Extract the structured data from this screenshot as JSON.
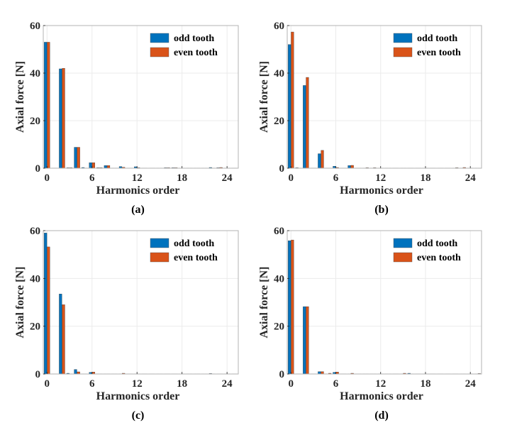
{
  "colors": {
    "odd": "#0072BD",
    "even": "#D95319",
    "grid": "#ebebeb",
    "frame": "#b3b3b3"
  },
  "chart_data": [
    {
      "type": "bar",
      "caption": "(a)",
      "xlabel": "Harmonics order",
      "ylabel": "Axial force [N]",
      "xlim": [
        -0.5,
        25.5
      ],
      "ylim": [
        0,
        60
      ],
      "xticks": [
        0,
        6,
        12,
        18,
        24
      ],
      "yticks": [
        0,
        20,
        40,
        60
      ],
      "grid": true,
      "legend": {
        "position": "top-right",
        "entries": [
          "odd tooth",
          "even tooth"
        ]
      },
      "x": [
        0,
        1,
        2,
        3,
        4,
        5,
        6,
        7,
        8,
        9,
        10,
        11,
        12,
        13,
        14,
        15,
        16,
        17,
        18,
        19,
        20,
        21,
        22,
        23,
        24,
        25
      ],
      "series": [
        {
          "name": "odd tooth",
          "values": [
            53.0,
            0.1,
            41.8,
            0.2,
            8.8,
            0.3,
            2.3,
            0.2,
            1.1,
            0.1,
            0.7,
            0.1,
            0.6,
            0.1,
            0.1,
            0.1,
            0.2,
            0.2,
            0.1,
            0.1,
            0.1,
            0.1,
            0.3,
            0.2,
            0.1,
            0.1
          ]
        },
        {
          "name": "even tooth",
          "values": [
            53.0,
            0.1,
            42.0,
            0.2,
            8.8,
            0.1,
            2.3,
            0.2,
            1.1,
            0.1,
            0.4,
            0.1,
            0.2,
            0.1,
            0.1,
            0.1,
            0.2,
            0.2,
            0.1,
            0.1,
            0.1,
            0.1,
            0.1,
            0.3,
            0.1,
            0.1
          ]
        }
      ]
    },
    {
      "type": "bar",
      "caption": "(b)",
      "xlabel": "Harmonics order",
      "ylabel": "Axial force [N]",
      "xlim": [
        -0.5,
        25.5
      ],
      "ylim": [
        0,
        60
      ],
      "xticks": [
        0,
        6,
        12,
        18,
        24
      ],
      "yticks": [
        0,
        20,
        40,
        60
      ],
      "grid": true,
      "legend": {
        "position": "top-right",
        "entries": [
          "odd tooth",
          "even tooth"
        ]
      },
      "x": [
        0,
        1,
        2,
        3,
        4,
        5,
        6,
        7,
        8,
        9,
        10,
        11,
        12,
        13,
        14,
        15,
        16,
        17,
        18,
        19,
        20,
        21,
        22,
        23,
        24,
        25
      ],
      "series": [
        {
          "name": "odd tooth",
          "values": [
            52.0,
            0.2,
            34.8,
            0.1,
            6.1,
            0.1,
            0.8,
            0.1,
            1.1,
            0.1,
            0.1,
            0.1,
            0.1,
            0.1,
            0.1,
            0.1,
            0.1,
            0.1,
            0.1,
            0.1,
            0.1,
            0.1,
            0.1,
            0.1,
            0.1,
            0.1
          ]
        },
        {
          "name": "even tooth",
          "values": [
            57.3,
            0.1,
            38.2,
            0.1,
            7.5,
            0.1,
            0.3,
            0.1,
            1.2,
            0.1,
            0.2,
            0.2,
            0.1,
            0.1,
            0.1,
            0.1,
            0.1,
            0.1,
            0.1,
            0.1,
            0.1,
            0.1,
            0.2,
            0.3,
            0.1,
            0.1
          ]
        }
      ]
    },
    {
      "type": "bar",
      "caption": "(c)",
      "xlabel": "Harmonics order",
      "ylabel": "Axial force [N]",
      "xlim": [
        -0.5,
        25.5
      ],
      "ylim": [
        0,
        60
      ],
      "xticks": [
        0,
        6,
        12,
        18,
        24
      ],
      "yticks": [
        0,
        20,
        40,
        60
      ],
      "grid": true,
      "legend": {
        "position": "top-right",
        "entries": [
          "odd tooth",
          "even tooth"
        ]
      },
      "x": [
        0,
        1,
        2,
        3,
        4,
        5,
        6,
        7,
        8,
        9,
        10,
        11,
        12,
        13,
        14,
        15,
        16,
        17,
        18,
        19,
        20,
        21,
        22,
        23,
        24,
        25
      ],
      "series": [
        {
          "name": "odd tooth",
          "values": [
            59.0,
            0.1,
            33.5,
            0.3,
            1.9,
            0.1,
            0.7,
            0.1,
            0.1,
            0.1,
            0.1,
            0.1,
            0.1,
            0.1,
            0.1,
            0.1,
            0.1,
            0.1,
            0.1,
            0.1,
            0.1,
            0.1,
            0.2,
            0.1,
            0.1,
            0.1
          ]
        },
        {
          "name": "even tooth",
          "values": [
            53.2,
            0.1,
            29.0,
            0.1,
            0.9,
            0.1,
            0.8,
            0.1,
            0.1,
            0.1,
            0.3,
            0.1,
            0.1,
            0.1,
            0.1,
            0.1,
            0.1,
            0.1,
            0.1,
            0.1,
            0.1,
            0.1,
            0.1,
            0.1,
            0.1,
            0.1
          ]
        }
      ]
    },
    {
      "type": "bar",
      "caption": "(d)",
      "xlabel": "Harmonics order",
      "ylabel": "Axial force [N]",
      "xlim": [
        -0.5,
        25.5
      ],
      "ylim": [
        0,
        60
      ],
      "xticks": [
        0,
        6,
        12,
        18,
        24
      ],
      "yticks": [
        0,
        20,
        40,
        60
      ],
      "grid": true,
      "legend": {
        "position": "top-right",
        "entries": [
          "odd tooth",
          "even tooth"
        ]
      },
      "x": [
        0,
        1,
        2,
        3,
        4,
        5,
        6,
        7,
        8,
        9,
        10,
        11,
        12,
        13,
        14,
        15,
        16,
        17,
        18,
        19,
        20,
        21,
        22,
        23,
        24,
        25
      ],
      "series": [
        {
          "name": "odd tooth",
          "values": [
            55.8,
            0.1,
            28.2,
            0.1,
            1.0,
            0.1,
            0.7,
            0.1,
            0.1,
            0.1,
            0.1,
            0.1,
            0.1,
            0.1,
            0.1,
            0.1,
            0.3,
            0.1,
            0.1,
            0.1,
            0.1,
            0.1,
            0.1,
            0.1,
            0.1,
            0.1
          ]
        },
        {
          "name": "even tooth",
          "values": [
            56.1,
            0.1,
            28.2,
            0.1,
            1.0,
            0.3,
            0.8,
            0.1,
            0.3,
            0.1,
            0.1,
            0.1,
            0.1,
            0.1,
            0.1,
            0.3,
            0.1,
            0.1,
            0.1,
            0.1,
            0.1,
            0.1,
            0.1,
            0.1,
            0.1,
            0.2
          ]
        }
      ]
    }
  ]
}
